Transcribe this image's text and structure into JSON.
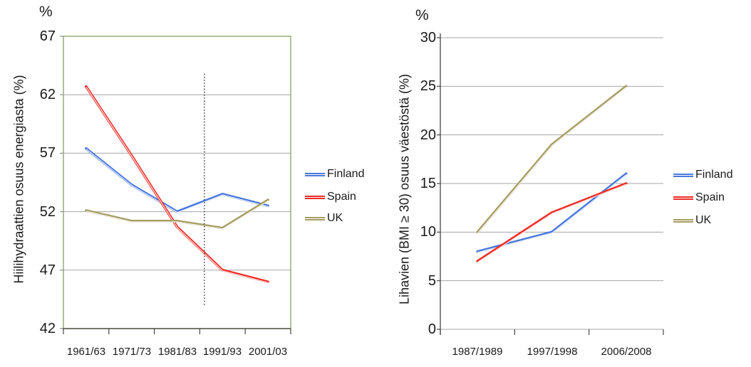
{
  "figure_unit": "%",
  "colors": {
    "grid": "#A6A6A6",
    "axis": "#454545",
    "y_tick": "#8F8F8F",
    "plot_border": "#A0B083",
    "dotted_line": "#2B2B2B",
    "text": "#1A1A1A",
    "line_highlight": "#FFFFFF"
  },
  "chart_data": [
    {
      "type": "line",
      "unit_label": "%",
      "ylabel": "Hiilihydraattien osuus energiasta (%)",
      "ylim": [
        42,
        67
      ],
      "y_ticks": [
        42,
        47,
        52,
        57,
        62,
        67
      ],
      "categories": [
        "1961/63",
        "1971/73",
        "1981/83",
        "1991/93",
        "2001/03"
      ],
      "series": [
        {
          "name": "Finland",
          "color": "#4A79DD",
          "values": [
            57.4,
            54.3,
            52.0,
            53.5,
            52.5
          ]
        },
        {
          "name": "Spain",
          "color": "#EE2D26",
          "values": [
            62.7,
            56.8,
            50.7,
            47.0,
            46.0
          ]
        },
        {
          "name": "UK",
          "color": "#A69D63",
          "values": [
            52.1,
            51.2,
            51.2,
            50.6,
            53.0
          ]
        }
      ],
      "grid": true,
      "legend_position": "right",
      "plot_border": true,
      "annotation": {
        "type": "vertical_dotted_line",
        "x_fraction": 0.62,
        "y_top_value": 63.8,
        "y_bottom_value": 44.0
      }
    },
    {
      "type": "line",
      "unit_label": "%",
      "ylabel": "Lihavien (BMI ≥ 30) osuus väestöstä (%)",
      "ylim": [
        0,
        30
      ],
      "y_ticks": [
        0,
        5,
        10,
        15,
        20,
        25,
        30
      ],
      "categories": [
        "1987/1989",
        "1997/1998",
        "2006/2008"
      ],
      "series": [
        {
          "name": "Finland",
          "color": "#4A79DD",
          "values": [
            8,
            10,
            16
          ]
        },
        {
          "name": "Spain",
          "color": "#EE2D26",
          "values": [
            7,
            12,
            15
          ]
        },
        {
          "name": "UK",
          "color": "#A69D63",
          "values": [
            10,
            19,
            25
          ]
        }
      ],
      "grid": true,
      "legend_position": "right",
      "plot_border": false,
      "annotation": null
    }
  ]
}
